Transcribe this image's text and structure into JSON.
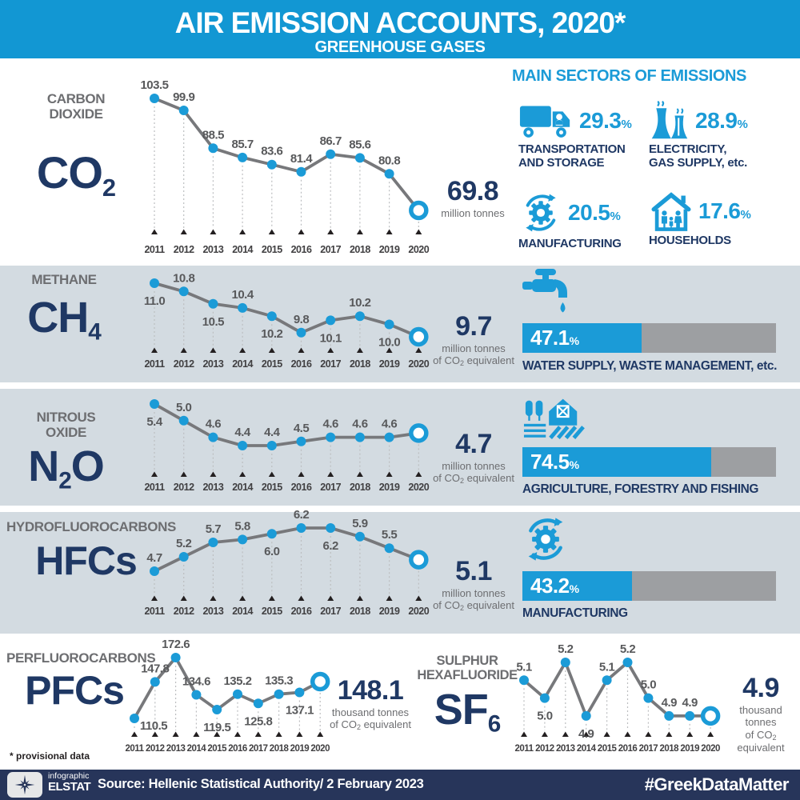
{
  "header": {
    "title": "AIR EMISSION ACCOUNTS, 2020*",
    "subtitle": "GREENHOUSE GASES"
  },
  "colors": {
    "banner_blue": "#1297d3",
    "accent_blue": "#1b9bd7",
    "navy": "#1f3864",
    "row_background": "#d3dbe1",
    "line_gray": "#77787b",
    "label_gray": "#58595b",
    "unit_gray": "#6d6e71",
    "bar_gray": "#9d9fa2",
    "footer_navy": "#27355a"
  },
  "chart_data": [
    {
      "id": "co2",
      "type": "line",
      "gas_name_lines": [
        "CARBON",
        "DIOXIDE"
      ],
      "formula": [
        {
          "t": "CO"
        },
        {
          "s": "2"
        }
      ],
      "x": [
        "2011",
        "2012",
        "2013",
        "2014",
        "2015",
        "2016",
        "2017",
        "2018",
        "2019",
        "2020"
      ],
      "values": [
        103.5,
        99.9,
        88.5,
        85.7,
        83.6,
        81.4,
        86.7,
        85.6,
        80.8,
        69.8
      ],
      "labels": [
        "103.5",
        "99.9",
        "88.5",
        "85.7",
        "83.6",
        "81.4",
        "86.7",
        "85.6",
        "80.8"
      ],
      "label_positions": [
        "above",
        "above",
        "above",
        "above",
        "above",
        "above",
        "above",
        "above",
        "above"
      ],
      "final_value": "69.8",
      "unit_lines": [
        {
          "text": "million tonnes"
        }
      ],
      "ylim": [
        69.8,
        103.5
      ]
    },
    {
      "id": "ch4",
      "type": "line",
      "gas_name_lines": [
        "METHANE"
      ],
      "formula": [
        {
          "t": "CH"
        },
        {
          "s": "4"
        }
      ],
      "x": [
        "2011",
        "2012",
        "2013",
        "2014",
        "2015",
        "2016",
        "2017",
        "2018",
        "2019",
        "2020"
      ],
      "values": [
        11.0,
        10.8,
        10.5,
        10.4,
        10.2,
        9.8,
        10.1,
        10.2,
        10.0,
        9.7
      ],
      "labels": [
        "11.0",
        "10.8",
        "10.5",
        "10.4",
        "10.2",
        "9.8",
        "10.1",
        "10.2",
        "10.0"
      ],
      "label_positions": [
        "below",
        "above",
        "below",
        "above",
        "below",
        "above",
        "below",
        "above",
        "below"
      ],
      "final_value": "9.7",
      "unit_lines": [
        {
          "text": "million tonnes"
        },
        {
          "pre": "of CO",
          "sub": "2",
          "post": " equivalent"
        }
      ],
      "ylim": [
        9.7,
        11.0
      ]
    },
    {
      "id": "n2o",
      "type": "line",
      "gas_name_lines": [
        "NITROUS",
        "OXIDE"
      ],
      "formula": [
        {
          "t": "N"
        },
        {
          "s": "2"
        },
        {
          "t": "O"
        }
      ],
      "x": [
        "2011",
        "2012",
        "2013",
        "2014",
        "2015",
        "2016",
        "2017",
        "2018",
        "2019",
        "2020"
      ],
      "values": [
        5.4,
        5.0,
        4.6,
        4.4,
        4.4,
        4.5,
        4.6,
        4.6,
        4.6,
        4.7
      ],
      "labels": [
        "5.4",
        "5.0",
        "4.6",
        "4.4",
        "4.4",
        "4.5",
        "4.6",
        "4.6",
        "4.6"
      ],
      "label_positions": [
        "below",
        "above",
        "above",
        "above",
        "above",
        "above",
        "above",
        "above",
        "above"
      ],
      "final_value": "4.7",
      "unit_lines": [
        {
          "text": "million tonnes"
        },
        {
          "pre": "of CO",
          "sub": "2",
          "post": " equivalent"
        }
      ],
      "ylim": [
        4.4,
        5.4
      ]
    },
    {
      "id": "hfcs",
      "type": "line",
      "gas_name_lines": [
        "HYDROFLUOROCARBONS"
      ],
      "formula": [
        {
          "t": "HFCs"
        }
      ],
      "x": [
        "2011",
        "2012",
        "2013",
        "2014",
        "2015",
        "2016",
        "2017",
        "2018",
        "2019",
        "2020"
      ],
      "values": [
        4.7,
        5.2,
        5.7,
        5.8,
        6.0,
        6.2,
        6.2,
        5.9,
        5.5,
        5.1
      ],
      "labels": [
        "4.7",
        "5.2",
        "5.7",
        "5.8",
        "6.0",
        "6.2",
        "6.2",
        "5.9",
        "5.5"
      ],
      "label_positions": [
        "above",
        "above",
        "above",
        "above",
        "below",
        "above",
        "below",
        "above",
        "above"
      ],
      "final_value": "5.1",
      "unit_lines": [
        {
          "text": "million tonnes"
        },
        {
          "pre": "of CO",
          "sub": "2",
          "post": " equivalent"
        }
      ],
      "ylim": [
        4.7,
        6.2
      ]
    },
    {
      "id": "pfcs",
      "type": "line",
      "gas_name_lines": [
        "PERFLUOROCARBONS"
      ],
      "formula": [
        {
          "t": "PFCs"
        }
      ],
      "x": [
        "2011",
        "2012",
        "2013",
        "2014",
        "2015",
        "2016",
        "2017",
        "2018",
        "2019",
        "2020"
      ],
      "values": [
        110.5,
        147.8,
        172.6,
        134.6,
        119.5,
        135.2,
        125.8,
        135.3,
        137.1,
        148.1
      ],
      "labels": [
        "110.5",
        "147.8",
        "172.6",
        "134.6",
        "119.5",
        "135.2",
        "125.8",
        "135.3",
        "137.1"
      ],
      "label_positions": [
        "beside",
        "above",
        "above",
        "above",
        "below",
        "above",
        "below",
        "above",
        "below"
      ],
      "final_value": "148.1",
      "unit_lines": [
        {
          "text": "thousand tonnes"
        },
        {
          "pre": "of CO",
          "sub": "2",
          "post": " equivalent"
        }
      ],
      "ylim": [
        110.5,
        172.6
      ]
    },
    {
      "id": "sf6",
      "type": "line",
      "gas_name_lines": [
        "SULPHUR",
        "HEXAFLUORIDE"
      ],
      "formula": [
        {
          "t": "SF"
        },
        {
          "s": "6"
        }
      ],
      "x": [
        "2011",
        "2012",
        "2013",
        "2014",
        "2015",
        "2016",
        "2017",
        "2018",
        "2019",
        "2020"
      ],
      "values": [
        5.1,
        5.0,
        5.2,
        4.9,
        5.1,
        5.2,
        5.0,
        4.9,
        4.9,
        4.9
      ],
      "labels": [
        "5.1",
        "5.0",
        "5.2",
        "4.9",
        "5.1",
        "5.2",
        "5.0",
        "4.9",
        "4.9"
      ],
      "label_positions": [
        "above",
        "below",
        "above",
        "below",
        "above",
        "above",
        "above",
        "above",
        "above"
      ],
      "final_value": "4.9",
      "unit_lines": [
        {
          "text": "thousand tonnes"
        },
        {
          "pre": "of CO",
          "sub": "2",
          "post": " equivalent"
        }
      ],
      "ylim": [
        4.9,
        5.2
      ]
    }
  ],
  "main_sectors": {
    "title": "MAIN SECTORS OF EMISSIONS",
    "items": [
      {
        "icon": "truck-icon",
        "value": "29.3",
        "unit": "%",
        "label_lines": [
          "TRANSPORTATION",
          "AND STORAGE"
        ]
      },
      {
        "icon": "power-plant-icon",
        "value": "28.9",
        "unit": "%",
        "label_lines": [
          "ELECTRICITY,",
          "GAS SUPPLY, etc."
        ]
      },
      {
        "icon": "manufacturing-icon",
        "value": "20.5",
        "unit": "%",
        "label_lines": [
          "MANUFACTURING"
        ]
      },
      {
        "icon": "household-icon",
        "value": "17.6",
        "unit": "%",
        "label_lines": [
          "HOUSEHOLDS"
        ]
      }
    ]
  },
  "sector_bars": [
    {
      "gas": "ch4",
      "icon": "faucet-icon",
      "percent": 47.1,
      "percent_label": "47.1",
      "sign": "%",
      "label": "WATER SUPPLY, WASTE MANAGEMENT, etc."
    },
    {
      "gas": "n2o",
      "icon": "farm-icon",
      "percent": 74.5,
      "percent_label": "74.5",
      "sign": "%",
      "label": "AGRICULTURE, FORESTRY AND FISHING"
    },
    {
      "gas": "hfcs",
      "icon": "manufacturing-icon",
      "percent": 43.2,
      "percent_label": "43.2",
      "sign": "%",
      "label": "MANUFACTURING"
    }
  ],
  "footnote": "* provisional data",
  "footer": {
    "logo_top": "infographic",
    "logo_bottom": "ELSTAT",
    "source": "Source: Hellenic Statistical Authority/ 2 February 2023",
    "hashtag": "#GreekDataMatter"
  }
}
